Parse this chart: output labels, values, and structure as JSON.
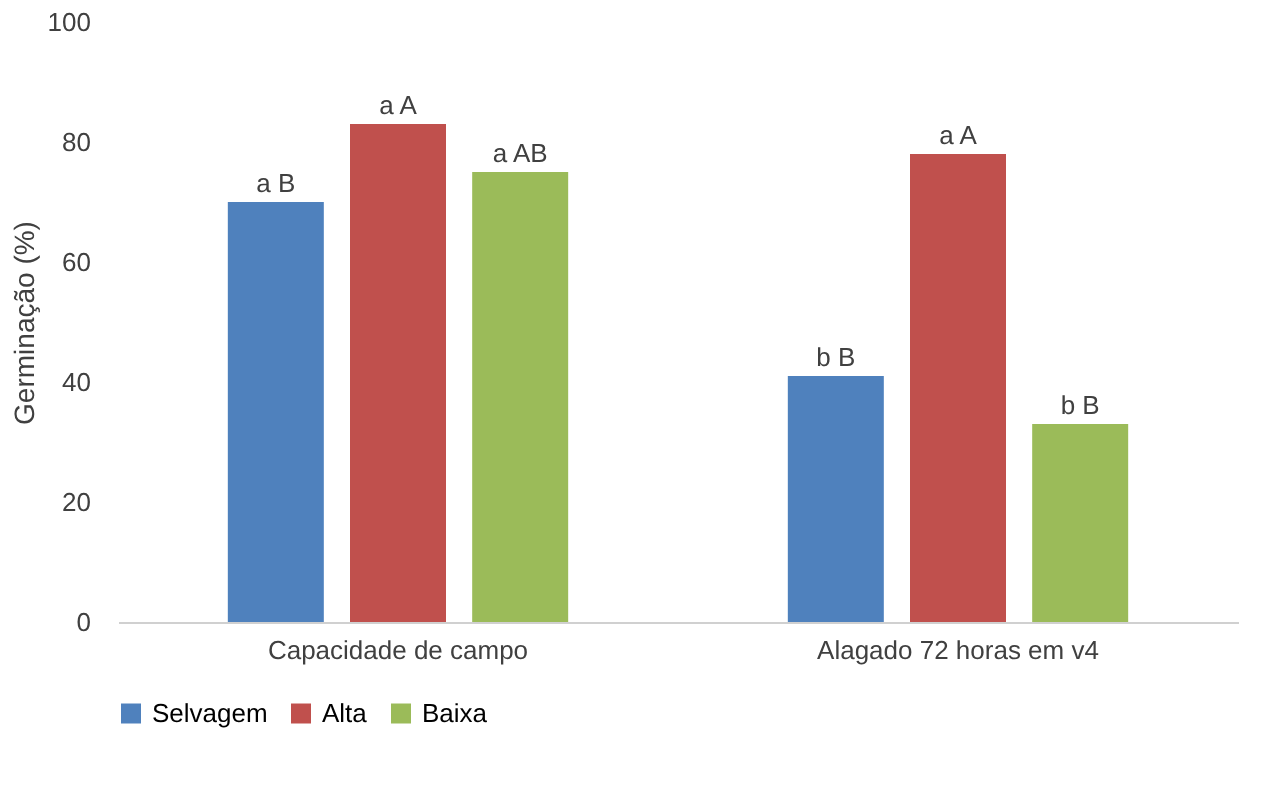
{
  "chart_data": {
    "type": "bar",
    "ylabel": "Germinação (%)",
    "categories": [
      "Capacidade de campo",
      "Alagado 72 horas em v4"
    ],
    "series": [
      {
        "name": "Selvagem",
        "color": "#4f81bd",
        "values": [
          70,
          41
        ],
        "value_labels": [
          "a B",
          "b B"
        ]
      },
      {
        "name": "Alta",
        "color": "#c0504d",
        "values": [
          83,
          78
        ],
        "value_labels": [
          "a A",
          "a A"
        ]
      },
      {
        "name": "Baixa",
        "color": "#9bbb59",
        "values": [
          75,
          33
        ],
        "value_labels": [
          "a AB",
          "b B"
        ]
      }
    ],
    "ylim": [
      0,
      100
    ],
    "yticks": [
      0,
      20,
      40,
      60,
      80,
      100
    ],
    "grid": false,
    "legend": "bottom"
  }
}
